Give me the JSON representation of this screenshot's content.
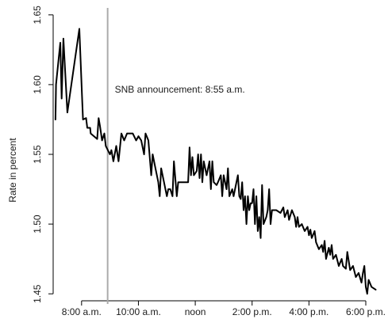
{
  "chart_data": {
    "type": "line",
    "title": "",
    "xlabel": "",
    "ylabel": "Rate in percent",
    "x_ticks": [
      "8:00 a.m.",
      "10:00 a.m.",
      "noon",
      "2:00 p.m.",
      "4:00 p.m.",
      "6:00 p.m."
    ],
    "x_tick_hours": [
      8,
      10,
      12,
      14,
      16,
      18
    ],
    "xlim_hours": [
      7.0,
      18.67
    ],
    "ylim": [
      1.445,
      1.655
    ],
    "y_ticks": [
      1.45,
      1.5,
      1.55,
      1.6,
      1.65
    ],
    "grid": false,
    "legend": "none",
    "line_color": "#000000",
    "annotation": {
      "text": "SNB announcement: 8:55 a.m.",
      "x_hour": 8.9167,
      "line_color": "#aaaaaa"
    },
    "series": [
      {
        "points": [
          [
            7.08,
            1.575
          ],
          [
            7.1,
            1.6
          ],
          [
            7.25,
            1.63
          ],
          [
            7.3,
            1.59
          ],
          [
            7.36,
            1.633
          ],
          [
            7.5,
            1.58
          ],
          [
            7.92,
            1.64
          ],
          [
            8.02,
            1.59
          ],
          [
            8.05,
            1.575
          ],
          [
            8.16,
            1.576
          ],
          [
            8.2,
            1.569
          ],
          [
            8.3,
            1.569
          ],
          [
            8.32,
            1.565
          ],
          [
            8.55,
            1.561
          ],
          [
            8.6,
            1.576
          ],
          [
            8.65,
            1.57
          ],
          [
            8.72,
            1.56
          ],
          [
            8.8,
            1.565
          ],
          [
            8.85,
            1.556
          ],
          [
            9.0,
            1.55
          ],
          [
            9.05,
            1.553
          ],
          [
            9.12,
            1.545
          ],
          [
            9.22,
            1.556
          ],
          [
            9.3,
            1.545
          ],
          [
            9.4,
            1.565
          ],
          [
            9.5,
            1.56
          ],
          [
            9.6,
            1.565
          ],
          [
            9.8,
            1.565
          ],
          [
            9.92,
            1.56
          ],
          [
            10.0,
            1.563
          ],
          [
            10.1,
            1.56
          ],
          [
            10.2,
            1.55
          ],
          [
            10.25,
            1.565
          ],
          [
            10.35,
            1.56
          ],
          [
            10.45,
            1.535
          ],
          [
            10.5,
            1.55
          ],
          [
            10.6,
            1.54
          ],
          [
            10.7,
            1.53
          ],
          [
            10.75,
            1.52
          ],
          [
            10.8,
            1.54
          ],
          [
            10.9,
            1.53
          ],
          [
            11.0,
            1.52
          ],
          [
            11.05,
            1.525
          ],
          [
            11.12,
            1.525
          ],
          [
            11.2,
            1.52
          ],
          [
            11.25,
            1.545
          ],
          [
            11.35,
            1.52
          ],
          [
            11.4,
            1.53
          ],
          [
            11.6,
            1.53
          ],
          [
            11.75,
            1.53
          ],
          [
            11.8,
            1.555
          ],
          [
            11.85,
            1.535
          ],
          [
            11.9,
            1.548
          ],
          [
            11.95,
            1.535
          ],
          [
            12.05,
            1.538
          ],
          [
            12.1,
            1.55
          ],
          [
            12.15,
            1.533
          ],
          [
            12.2,
            1.55
          ],
          [
            12.25,
            1.53
          ],
          [
            12.3,
            1.545
          ],
          [
            12.4,
            1.535
          ],
          [
            12.5,
            1.545
          ],
          [
            12.55,
            1.525
          ],
          [
            12.6,
            1.545
          ],
          [
            12.65,
            1.53
          ],
          [
            12.75,
            1.528
          ],
          [
            12.8,
            1.53
          ],
          [
            12.9,
            1.535
          ],
          [
            12.95,
            1.52
          ],
          [
            13.0,
            1.535
          ],
          [
            13.1,
            1.525
          ],
          [
            13.15,
            1.54
          ],
          [
            13.2,
            1.52
          ],
          [
            13.3,
            1.525
          ],
          [
            13.35,
            1.52
          ],
          [
            13.45,
            1.53
          ],
          [
            13.5,
            1.535
          ],
          [
            13.55,
            1.52
          ],
          [
            13.6,
            1.518
          ],
          [
            13.65,
            1.53
          ],
          [
            13.7,
            1.51
          ],
          [
            13.75,
            1.52
          ],
          [
            13.8,
            1.5
          ],
          [
            13.85,
            1.52
          ],
          [
            13.9,
            1.51
          ],
          [
            13.95,
            1.515
          ],
          [
            14.0,
            1.515
          ],
          [
            14.05,
            1.525
          ],
          [
            14.1,
            1.5
          ],
          [
            14.15,
            1.52
          ],
          [
            14.2,
            1.495
          ],
          [
            14.25,
            1.505
          ],
          [
            14.3,
            1.49
          ],
          [
            14.35,
            1.528
          ],
          [
            14.4,
            1.5
          ],
          [
            14.5,
            1.505
          ],
          [
            14.55,
            1.51
          ],
          [
            14.6,
            1.525
          ],
          [
            14.65,
            1.5
          ],
          [
            14.7,
            1.51
          ],
          [
            14.85,
            1.51
          ],
          [
            15.0,
            1.508
          ],
          [
            15.1,
            1.512
          ],
          [
            15.15,
            1.505
          ],
          [
            15.25,
            1.51
          ],
          [
            15.3,
            1.503
          ],
          [
            15.4,
            1.51
          ],
          [
            15.5,
            1.505
          ],
          [
            15.55,
            1.498
          ],
          [
            15.6,
            1.505
          ],
          [
            15.65,
            1.498
          ],
          [
            15.75,
            1.5
          ],
          [
            15.85,
            1.495
          ],
          [
            15.95,
            1.498
          ],
          [
            16.0,
            1.492
          ],
          [
            16.05,
            1.496
          ],
          [
            16.1,
            1.49
          ],
          [
            16.2,
            1.495
          ],
          [
            16.25,
            1.487
          ],
          [
            16.35,
            1.482
          ],
          [
            16.45,
            1.485
          ],
          [
            16.5,
            1.48
          ],
          [
            16.55,
            1.488
          ],
          [
            16.6,
            1.475
          ],
          [
            16.7,
            1.483
          ],
          [
            16.75,
            1.478
          ],
          [
            16.8,
            1.485
          ],
          [
            16.85,
            1.475
          ],
          [
            16.95,
            1.478
          ],
          [
            17.05,
            1.47
          ],
          [
            17.15,
            1.475
          ],
          [
            17.2,
            1.47
          ],
          [
            17.3,
            1.468
          ],
          [
            17.35,
            1.48
          ],
          [
            17.45,
            1.467
          ],
          [
            17.55,
            1.47
          ],
          [
            17.65,
            1.462
          ],
          [
            17.75,
            1.465
          ],
          [
            17.85,
            1.458
          ],
          [
            17.9,
            1.465
          ],
          [
            17.95,
            1.47
          ],
          [
            18.0,
            1.455
          ],
          [
            18.05,
            1.45
          ],
          [
            18.1,
            1.46
          ],
          [
            18.2,
            1.455
          ],
          [
            18.35,
            1.453
          ]
        ]
      }
    ]
  }
}
